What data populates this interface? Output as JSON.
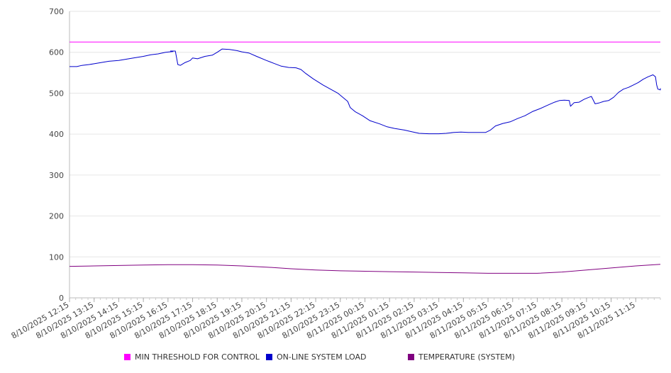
{
  "chart_data": {
    "type": "line",
    "ylim": [
      0,
      700
    ],
    "y_ticks": [
      "0",
      "100",
      "200",
      "300",
      "400",
      "500",
      "600",
      "700"
    ],
    "x_tick_labels": [
      "8/10/2025 12:15",
      "8/10/2025 13:15",
      "8/10/2025 14:15",
      "8/10/2025 15:15",
      "8/10/2025 16:15",
      "8/10/2025 17:15",
      "8/10/2025 18:15",
      "8/10/2025 19:15",
      "8/10/2025 20:15",
      "8/10/2025 21:15",
      "8/10/2025 22:15",
      "8/10/2025 23:15",
      "8/11/2025 00:15",
      "8/11/2025 01:15",
      "8/11/2025 02:15",
      "8/11/2025 03:15",
      "8/11/2025 04:15",
      "8/11/2025 05:15",
      "8/11/2025 06:15",
      "8/11/2025 07:15",
      "8/11/2025 08:15",
      "8/11/2025 09:15",
      "8/11/2025 10:15",
      "8/11/2025 11:15"
    ],
    "x_range_hours": [
      0,
      24
    ],
    "grid": true,
    "legend_position": "bottom",
    "series": [
      {
        "name": "MIN THRESHOLD FOR CONTROL",
        "color": "#ff00ff",
        "points": [
          [
            0,
            625
          ],
          [
            24,
            625
          ]
        ]
      },
      {
        "name": "ON-LINE SYSTEM LOAD",
        "color": "#0000cc",
        "points": [
          [
            0,
            565
          ],
          [
            0.3,
            565
          ],
          [
            0.5,
            568
          ],
          [
            0.8,
            570
          ],
          [
            1.0,
            572
          ],
          [
            1.3,
            575
          ],
          [
            1.6,
            578
          ],
          [
            2.0,
            580
          ],
          [
            2.3,
            583
          ],
          [
            2.6,
            586
          ],
          [
            3.0,
            590
          ],
          [
            3.3,
            594
          ],
          [
            3.6,
            596
          ],
          [
            3.9,
            600
          ],
          [
            4.2,
            602
          ],
          [
            4.1,
            603
          ],
          [
            4.3,
            603
          ],
          [
            4.4,
            570
          ],
          [
            4.5,
            568
          ],
          [
            4.7,
            575
          ],
          [
            4.9,
            580
          ],
          [
            5.0,
            586
          ],
          [
            5.2,
            584
          ],
          [
            5.5,
            590
          ],
          [
            5.8,
            593
          ],
          [
            6.0,
            600
          ],
          [
            6.2,
            608
          ],
          [
            6.5,
            607
          ],
          [
            6.8,
            604
          ],
          [
            7.0,
            601
          ],
          [
            7.3,
            598
          ],
          [
            7.6,
            590
          ],
          [
            8.0,
            580
          ],
          [
            8.3,
            573
          ],
          [
            8.6,
            566
          ],
          [
            8.9,
            563
          ],
          [
            9.2,
            562
          ],
          [
            9.4,
            558
          ],
          [
            9.6,
            548
          ],
          [
            9.9,
            535
          ],
          [
            10.3,
            520
          ],
          [
            10.6,
            510
          ],
          [
            10.9,
            500
          ],
          [
            11.1,
            490
          ],
          [
            11.3,
            480
          ],
          [
            11.4,
            465
          ],
          [
            11.6,
            455
          ],
          [
            11.9,
            445
          ],
          [
            12.2,
            433
          ],
          [
            12.6,
            425
          ],
          [
            12.9,
            418
          ],
          [
            13.2,
            414
          ],
          [
            13.6,
            410
          ],
          [
            13.9,
            406
          ],
          [
            14.2,
            402
          ],
          [
            14.6,
            401
          ],
          [
            15.0,
            401
          ],
          [
            15.3,
            402
          ],
          [
            15.6,
            404
          ],
          [
            15.9,
            405
          ],
          [
            16.2,
            404
          ],
          [
            16.6,
            404
          ],
          [
            16.9,
            404
          ],
          [
            17.1,
            410
          ],
          [
            17.3,
            420
          ],
          [
            17.6,
            426
          ],
          [
            17.9,
            430
          ],
          [
            18.2,
            438
          ],
          [
            18.5,
            445
          ],
          [
            18.8,
            455
          ],
          [
            19.1,
            462
          ],
          [
            19.4,
            470
          ],
          [
            19.7,
            478
          ],
          [
            19.9,
            482
          ],
          [
            20.1,
            483
          ],
          [
            20.3,
            482
          ],
          [
            20.35,
            468
          ],
          [
            20.5,
            477
          ],
          [
            20.7,
            478
          ],
          [
            20.9,
            485
          ],
          [
            21.1,
            490
          ],
          [
            21.2,
            492
          ],
          [
            21.35,
            474
          ],
          [
            21.5,
            476
          ],
          [
            21.7,
            480
          ],
          [
            21.9,
            482
          ],
          [
            22.1,
            490
          ],
          [
            22.3,
            502
          ],
          [
            22.5,
            510
          ],
          [
            22.7,
            514
          ],
          [
            22.9,
            520
          ],
          [
            23.1,
            526
          ],
          [
            23.3,
            534
          ],
          [
            23.5,
            540
          ],
          [
            23.7,
            545
          ],
          [
            23.8,
            540
          ],
          [
            23.85,
            520
          ],
          [
            23.9,
            510
          ],
          [
            24.0,
            508
          ],
          [
            24.0,
            512
          ]
        ]
      },
      {
        "name": "TEMPERATURE (SYSTEM)",
        "color": "#800080",
        "points": [
          [
            0,
            77
          ],
          [
            1,
            78
          ],
          [
            2,
            79
          ],
          [
            3,
            80
          ],
          [
            4,
            81
          ],
          [
            5,
            81
          ],
          [
            6,
            80
          ],
          [
            7,
            78
          ],
          [
            8,
            75
          ],
          [
            9,
            71
          ],
          [
            10,
            68
          ],
          [
            11,
            66
          ],
          [
            12,
            65
          ],
          [
            13,
            64
          ],
          [
            14,
            63
          ],
          [
            15,
            62
          ],
          [
            16,
            61
          ],
          [
            17,
            60
          ],
          [
            18,
            60
          ],
          [
            19,
            60
          ],
          [
            20,
            63
          ],
          [
            21,
            68
          ],
          [
            22,
            73
          ],
          [
            23,
            78
          ],
          [
            24,
            82
          ]
        ]
      }
    ]
  }
}
